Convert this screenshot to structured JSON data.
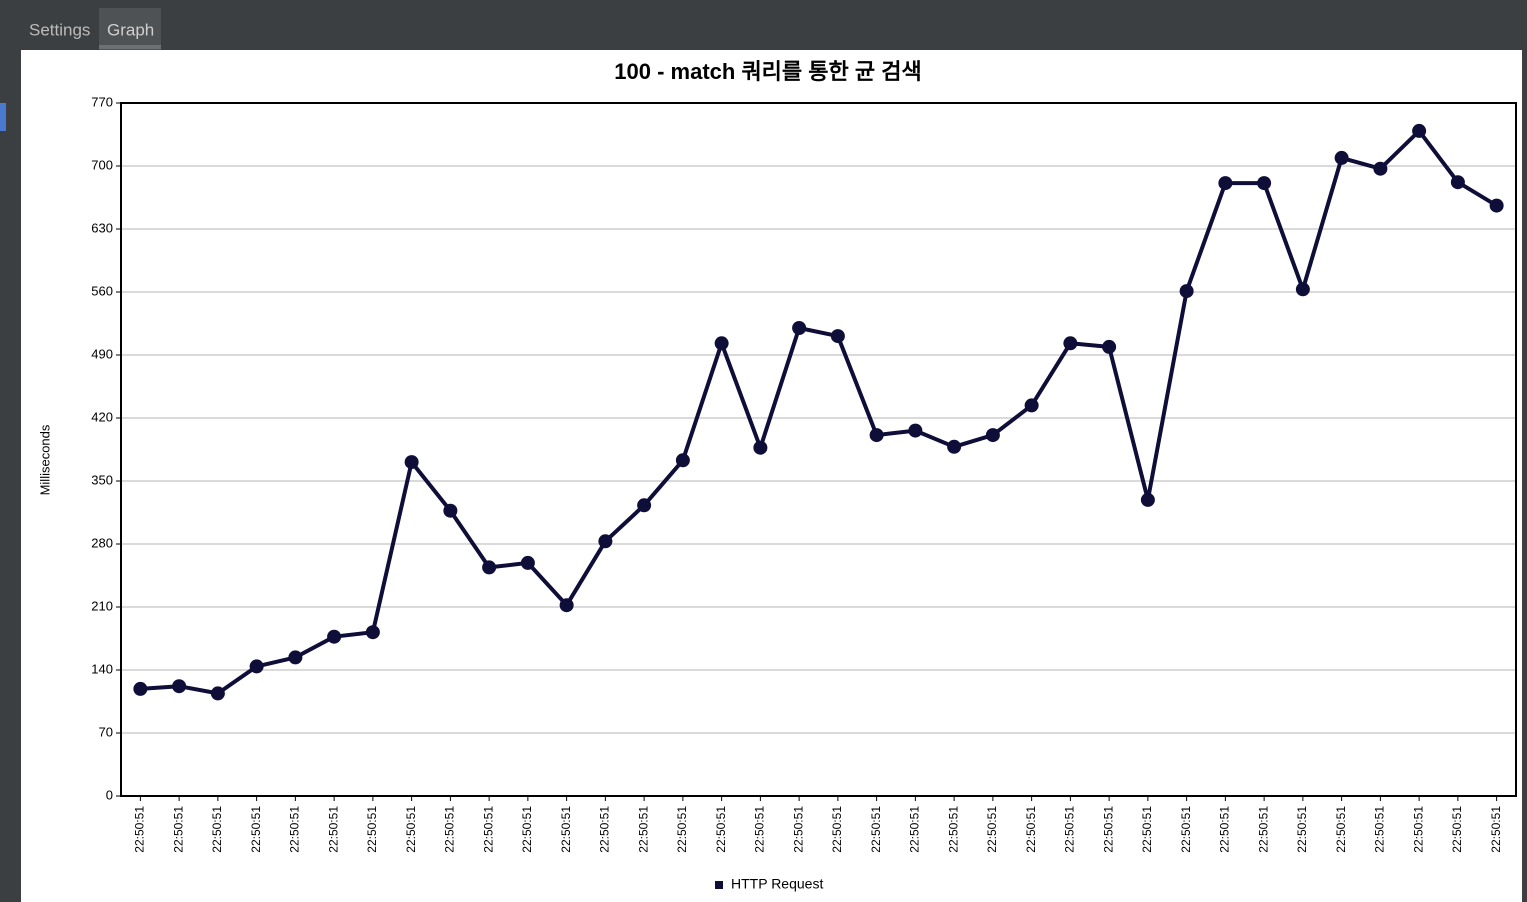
{
  "tabs": [
    "Settings",
    "Graph"
  ],
  "chart_data": {
    "type": "line",
    "title": "100 - match 쿼리를 통한 균 검색",
    "y_label": "Milliseconds",
    "categories": [
      "22:50:51",
      "22:50:51",
      "22:50:51",
      "22:50:51",
      "22:50:51",
      "22:50:51",
      "22:50:51",
      "22:50:51",
      "22:50:51",
      "22:50:51",
      "22:50:51",
      "22:50:51",
      "22:50:51",
      "22:50:51",
      "22:50:51",
      "22:50:51",
      "22:50:51",
      "22:50:51",
      "22:50:51",
      "22:50:51",
      "22:50:51",
      "22:50:51",
      "22:50:51",
      "22:50:51",
      "22:50:51",
      "22:50:51",
      "22:50:51",
      "22:50:51",
      "22:50:51",
      "22:50:51",
      "22:50:51",
      "22:50:51",
      "22:50:51",
      "22:50:51",
      "22:50:51",
      "22:50:51"
    ],
    "series": [
      {
        "name": "HTTP Request",
        "color": "#0e0e38",
        "values": [
          119,
          122,
          114,
          144,
          154,
          177,
          182,
          371,
          317,
          254,
          259,
          212,
          283,
          323,
          373,
          503,
          387,
          520,
          511,
          401,
          406,
          388,
          401,
          434,
          503,
          499,
          329,
          561,
          681,
          681,
          563,
          709,
          697,
          739,
          682,
          656
        ]
      }
    ],
    "ylim": [
      0,
      770
    ],
    "yticks": [
      0,
      70,
      140,
      210,
      280,
      350,
      420,
      490,
      560,
      630,
      700,
      770
    ],
    "grid": true
  }
}
